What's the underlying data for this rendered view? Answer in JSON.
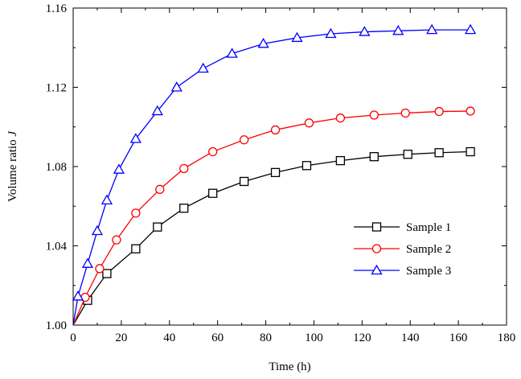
{
  "chart_data": {
    "type": "line",
    "xlabel": "Time (h)",
    "ylabel_text": "Volume ratio ",
    "ylabel_var": "J",
    "xlim": [
      0,
      180
    ],
    "ylim": [
      1.0,
      1.16
    ],
    "x_ticks": [
      0,
      20,
      40,
      60,
      80,
      100,
      120,
      140,
      160,
      180
    ],
    "y_ticks": [
      1.0,
      1.04,
      1.08,
      1.12,
      1.16
    ],
    "x_tick_labels": [
      "0",
      "20",
      "40",
      "60",
      "80",
      "100",
      "120",
      "140",
      "160",
      "180"
    ],
    "y_tick_labels": [
      "1.00",
      "1.04",
      "1.08",
      "1.12",
      "1.16"
    ],
    "grid": false,
    "legend_position": "center-right",
    "series": [
      {
        "name": "Sample 1",
        "color": "#000000",
        "marker": "square",
        "x": [
          0,
          6,
          14,
          26,
          35,
          46,
          58,
          71,
          84,
          97,
          111,
          125,
          139,
          152,
          165
        ],
        "y": [
          1.0,
          1.0125,
          1.026,
          1.0385,
          1.0495,
          1.059,
          1.0665,
          1.0725,
          1.077,
          1.0805,
          1.083,
          1.085,
          1.0862,
          1.087,
          1.0875
        ]
      },
      {
        "name": "Sample 2",
        "color": "#ff0000",
        "marker": "circle",
        "x": [
          0,
          5,
          11,
          18,
          26,
          36,
          46,
          58,
          71,
          84,
          98,
          111,
          125,
          138,
          152,
          165
        ],
        "y": [
          1.0,
          1.014,
          1.0285,
          1.043,
          1.0565,
          1.0685,
          1.079,
          1.0875,
          1.0935,
          1.0985,
          1.102,
          1.1045,
          1.106,
          1.107,
          1.1078,
          1.108
        ]
      },
      {
        "name": "Sample 3",
        "color": "#0000ff",
        "marker": "triangle",
        "x": [
          0,
          2,
          6,
          10,
          14,
          19,
          26,
          35,
          43,
          54,
          66,
          79,
          93,
          107,
          121,
          135,
          149,
          165
        ],
        "y": [
          1.0,
          1.0145,
          1.031,
          1.0475,
          1.063,
          1.0785,
          1.094,
          1.108,
          1.12,
          1.1295,
          1.137,
          1.142,
          1.145,
          1.147,
          1.148,
          1.1485,
          1.149,
          1.149
        ]
      }
    ]
  }
}
